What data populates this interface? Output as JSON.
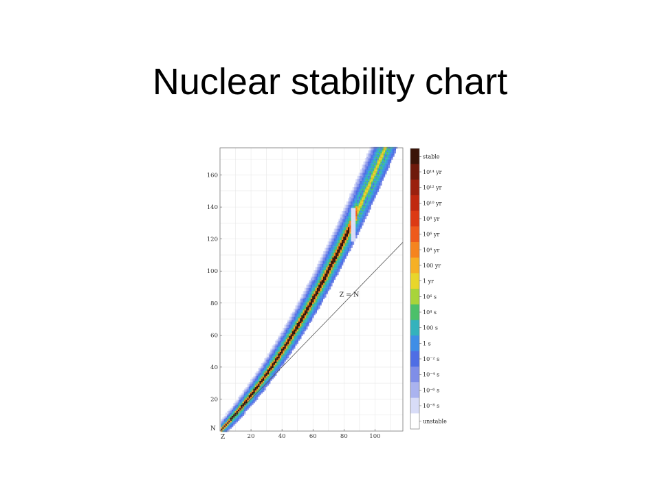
{
  "slide": {
    "title": "Nuclear stability chart"
  },
  "chart_data": {
    "type": "heatmap",
    "title": "",
    "x_axis": {
      "letter": "Z",
      "ticks": [
        20,
        40,
        60,
        80,
        100
      ],
      "range": [
        0,
        118
      ]
    },
    "y_axis": {
      "letter": "N",
      "ticks": [
        20,
        40,
        60,
        80,
        100,
        120,
        140,
        160
      ],
      "range": [
        0,
        177
      ]
    },
    "grid": true,
    "diagonal_label": "Z = N",
    "colorbar": {
      "labels": [
        "stable",
        "10¹⁴ yr",
        "10¹² yr",
        "10¹⁰ yr",
        "10⁸ yr",
        "10⁶ yr",
        "10⁴ yr",
        "100 yr",
        "1 yr",
        "10⁶ s",
        "10⁴ s",
        "100 s",
        "1 s",
        "10⁻² s",
        "10⁻⁴ s",
        "10⁻⁶ s",
        "10⁻⁸ s",
        "unstable"
      ],
      "colors": [
        "#3a1408",
        "#6e1a0c",
        "#9a200e",
        "#c0280f",
        "#dc3a14",
        "#ee5a1c",
        "#f5841f",
        "#f6b025",
        "#e8d62b",
        "#a8d43a",
        "#4cc06a",
        "#34b2bc",
        "#3f8ee6",
        "#4f6ee4",
        "#7f8ee8",
        "#aab3ef",
        "#d8dcf7",
        "#ffffff"
      ]
    }
  }
}
